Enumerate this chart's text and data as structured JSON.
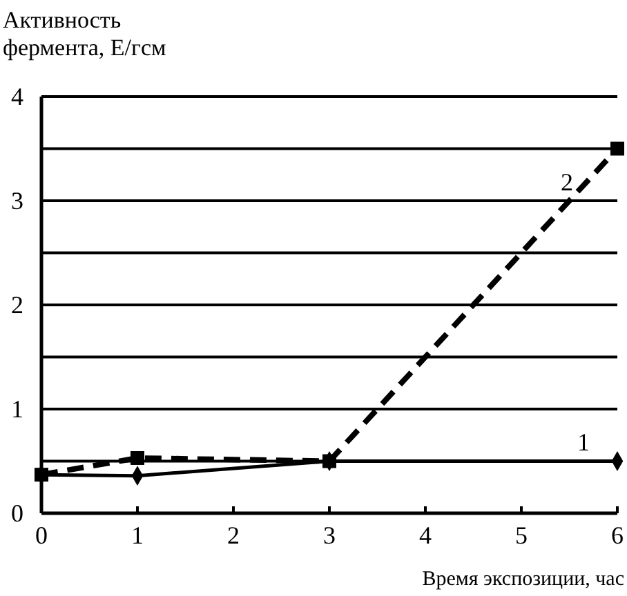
{
  "chart_data": {
    "type": "line",
    "ylabel": "Активность фермента, Е/гсм",
    "xlabel": "Время экспозиции, час",
    "x": [
      0,
      1,
      3,
      6
    ],
    "xlim": [
      0,
      6
    ],
    "xticks": [
      0,
      1,
      2,
      3,
      4,
      5,
      6
    ],
    "ylim": [
      0,
      4
    ],
    "yticks": [
      0,
      {
        "value": 0.5,
        "label": null
      },
      1,
      {
        "value": 1.5,
        "label": null
      },
      2,
      {
        "value": 2.5,
        "label": null
      },
      3,
      {
        "value": 3.5,
        "label": null
      },
      4
    ],
    "grid": "y",
    "series": [
      {
        "name": "1",
        "color": "#000000",
        "values": [
          0.37,
          0.36,
          0.5,
          0.5
        ],
        "marker": "diamond",
        "line_style": "solid"
      },
      {
        "name": "2",
        "color": "#000000",
        "values": [
          0.37,
          0.53,
          0.5,
          3.5
        ],
        "marker": "square",
        "line_style": "dashed"
      }
    ]
  }
}
